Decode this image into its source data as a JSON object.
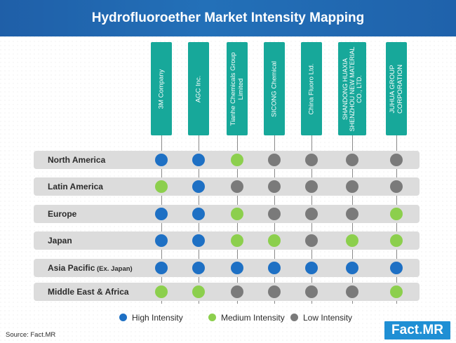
{
  "title": "Hydrofluoroether Market Intensity Mapping",
  "companies": [
    "3M Company",
    "AGC Inc.",
    "Tianhe Chemicals Group Limited",
    "SICONG Chemical",
    "China Fluoro Ltd.",
    "SHANDONG HUAXIA SHENZHOU NEW MATERIAL CO., LTD.",
    "JUHUA GROUP CORPORATION"
  ],
  "regions": [
    {
      "label": "North America",
      "suffix": "",
      "levels": [
        "high",
        "high",
        "medium",
        "low",
        "low",
        "low",
        "low"
      ]
    },
    {
      "label": "Latin America",
      "suffix": "",
      "levels": [
        "medium",
        "high",
        "low",
        "low",
        "low",
        "low",
        "low"
      ]
    },
    {
      "label": "Europe",
      "suffix": "",
      "levels": [
        "high",
        "high",
        "medium",
        "low",
        "low",
        "low",
        "medium"
      ]
    },
    {
      "label": "Japan",
      "suffix": "",
      "levels": [
        "high",
        "high",
        "medium",
        "medium",
        "low",
        "medium",
        "medium"
      ]
    },
    {
      "label": "Asia Pacific",
      "suffix": " (Ex. Japan)",
      "levels": [
        "high",
        "high",
        "high",
        "high",
        "high",
        "high",
        "high"
      ]
    },
    {
      "label": "Middle East & Africa",
      "suffix": "",
      "levels": [
        "medium",
        "medium",
        "low",
        "low",
        "low",
        "low",
        "medium"
      ]
    }
  ],
  "legend": [
    {
      "key": "high",
      "label": "High Intensity"
    },
    {
      "key": "medium",
      "label": "Medium Intensity"
    },
    {
      "key": "low",
      "label": "Low Intensity"
    }
  ],
  "colors": {
    "high": "#1e70c4",
    "medium": "#8ccf4d",
    "low": "#7a7a7a",
    "header": "#17a89a",
    "title_bar": "#2370b8"
  },
  "source": "Source: Fact.MR",
  "logo": {
    "left": "Fact",
    "sep": ".",
    "right": "MR"
  }
}
